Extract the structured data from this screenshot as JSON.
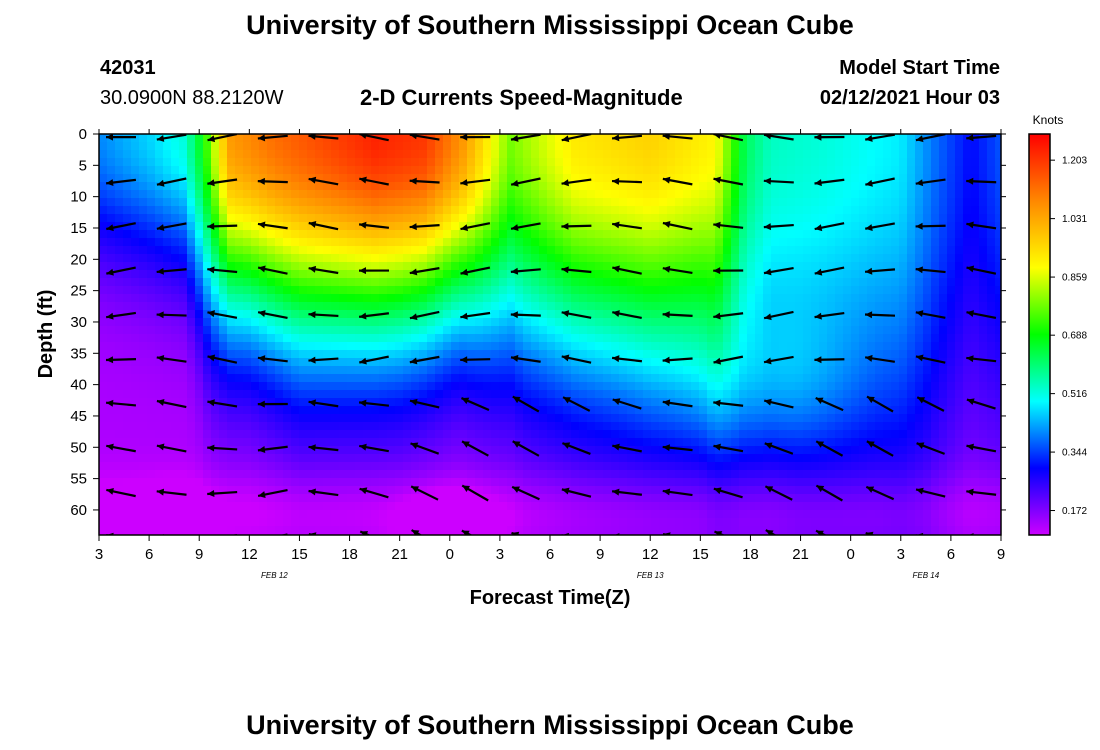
{
  "header": {
    "title": "University of Southern Mississippi Ocean Cube",
    "station_id": "42031",
    "station_location": "30.0900N 88.2120W",
    "plot_subtitle": "2-D Currents Speed-Magnitude",
    "model_start_label": "Model Start Time",
    "model_start_value": "02/12/2021 Hour 03"
  },
  "footer": {
    "title": "University of Southern Mississippi Ocean Cube"
  },
  "chart_data": {
    "type": "heatmap",
    "xlabel": "Forecast Time(Z)",
    "ylabel": "Depth (ft)",
    "x_ticks": [
      "3",
      "6",
      "9",
      "12",
      "15",
      "18",
      "21",
      "0",
      "3",
      "6",
      "9",
      "12",
      "15",
      "18",
      "21",
      "0",
      "3",
      "6",
      "9"
    ],
    "date_labels": [
      {
        "label": "FEB 12",
        "tick_index": 3.5
      },
      {
        "label": "FEB 13",
        "tick_index": 11
      },
      {
        "label": "FEB 14",
        "tick_index": 16.5
      }
    ],
    "y_ticks": [
      0,
      5,
      10,
      15,
      20,
      25,
      30,
      35,
      40,
      45,
      50,
      55,
      60
    ],
    "ylim": [
      0,
      64
    ],
    "colorbar": {
      "title": "Knots",
      "labels": [
        "1.203",
        "1.031",
        "0.859",
        "0.688",
        "0.516",
        "0.344",
        "0.172"
      ],
      "range": [
        0.1,
        1.28
      ],
      "colors": [
        "#cc00ff",
        "#0000ff",
        "#00ffff",
        "#00ff00",
        "#ffff00",
        "#ff8800",
        "#ff0000"
      ]
    },
    "grid": false,
    "legend": "right"
  }
}
